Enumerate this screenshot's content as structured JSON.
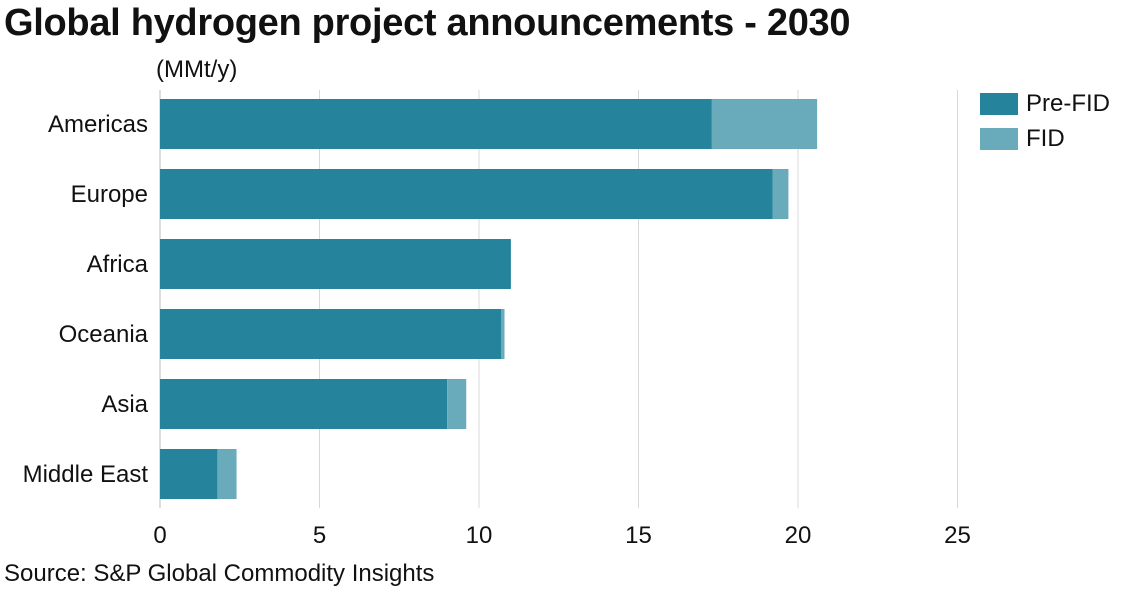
{
  "title": "Global hydrogen project announcements - 2030",
  "source": "Source: S&P Global Commodity Insights",
  "colors": {
    "pre_fid": "#25849b",
    "fid": "#6aabbb",
    "grid": "#d8d8d8"
  },
  "chart_data": {
    "type": "bar",
    "orientation": "horizontal",
    "stacked": true,
    "title": "Global hydrogen project announcements - 2030",
    "unit_label": "(MMt/y)",
    "categories": [
      "Americas",
      "Europe",
      "Africa",
      "Oceania",
      "Asia",
      "Middle East"
    ],
    "series": [
      {
        "name": "Pre-FID",
        "values": [
          17.3,
          19.2,
          11.0,
          10.7,
          9.0,
          1.8
        ]
      },
      {
        "name": "FID",
        "values": [
          3.3,
          0.5,
          0.0,
          0.1,
          0.6,
          0.6
        ]
      }
    ],
    "xlim": [
      0,
      25
    ],
    "xticks": [
      0,
      5,
      10,
      15,
      20,
      25
    ],
    "grid": "vertical",
    "legend": "top-right"
  }
}
